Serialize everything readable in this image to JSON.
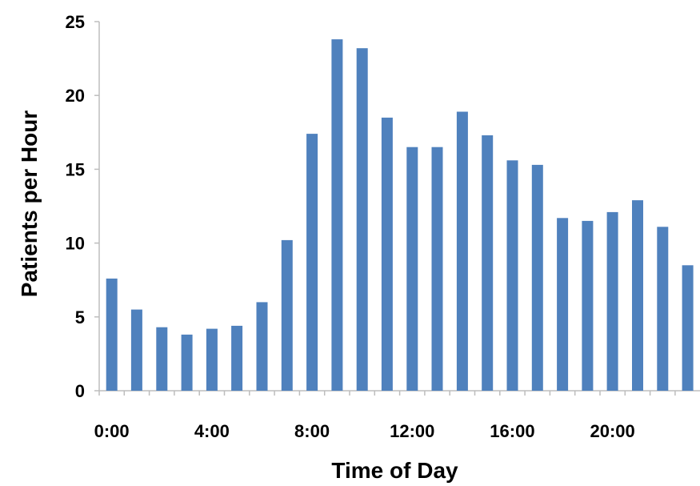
{
  "chart_data": {
    "type": "bar",
    "xlabel": "Time of Day",
    "ylabel": "Patients per Hour",
    "ylim": [
      0,
      25
    ],
    "y_ticks": [
      "0",
      "5",
      "10",
      "15",
      "20",
      "25"
    ],
    "x_tick_labels": [
      "0:00",
      "4:00",
      "8:00",
      "12:00",
      "16:00",
      "20:00"
    ],
    "categories": [
      "0:00",
      "1:00",
      "2:00",
      "3:00",
      "4:00",
      "5:00",
      "6:00",
      "7:00",
      "8:00",
      "9:00",
      "10:00",
      "11:00",
      "12:00",
      "13:00",
      "14:00",
      "15:00",
      "16:00",
      "17:00",
      "18:00",
      "19:00",
      "20:00",
      "21:00",
      "22:00",
      "23:00"
    ],
    "values": [
      7.6,
      5.5,
      4.3,
      3.8,
      4.2,
      4.4,
      6.0,
      10.2,
      17.4,
      23.8,
      23.2,
      18.5,
      16.5,
      16.5,
      18.9,
      17.3,
      15.6,
      15.3,
      11.7,
      11.5,
      12.1,
      12.9,
      11.1,
      8.5
    ],
    "bar_color": "#4F81BD",
    "grid": false,
    "legend": "none"
  }
}
